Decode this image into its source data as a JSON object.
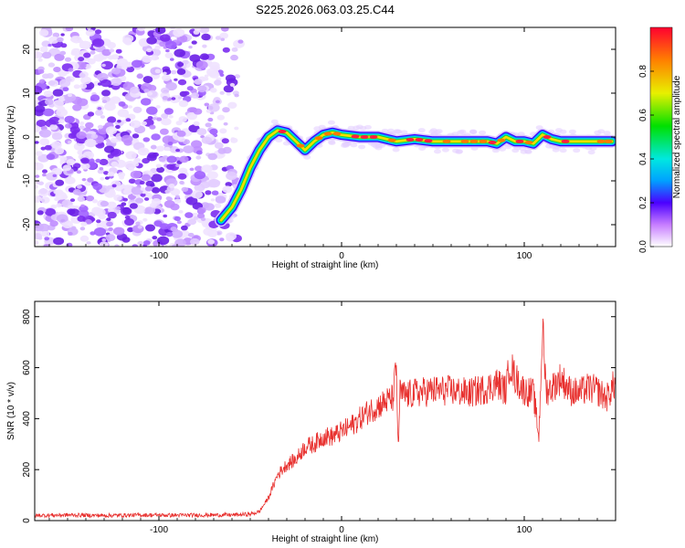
{
  "title": "S225.2026.063.03.25.C44",
  "colors": {
    "snr_line": "#e8312f",
    "scatter": "#7b2cf0",
    "axis": "#000000"
  },
  "chart_data": [
    {
      "type": "heatmap",
      "name": "spectrogram",
      "title": "S225.2026.063.03.25.C44",
      "xlabel": "Height of straight line (km)",
      "ylabel": "Frequency (Hz)",
      "xlim": [
        -168,
        150
      ],
      "ylim": [
        -25,
        25
      ],
      "x_ticks": [
        -100,
        0,
        100
      ],
      "y_ticks": [
        -20,
        -10,
        0,
        10,
        20
      ],
      "colorbar": {
        "label": "Normalized spectral amplitude",
        "range": [
          0,
          1
        ],
        "ticks": [
          0.0,
          0.2,
          0.4,
          0.6,
          0.8
        ]
      },
      "noise_region_x": [
        -168,
        -55
      ],
      "track": {
        "x": [
          -66,
          -60,
          -55,
          -50,
          -45,
          -40,
          -35,
          -30,
          -25,
          -20,
          -15,
          -10,
          -5,
          0,
          10,
          20,
          30,
          40,
          50,
          60,
          70,
          80,
          85,
          90,
          95,
          100,
          105,
          110,
          115,
          120,
          130,
          140,
          148
        ],
        "y": [
          -19,
          -16,
          -12,
          -7,
          -3,
          0,
          1.5,
          1,
          -1,
          -3,
          -1,
          0.5,
          1,
          0.5,
          0,
          0,
          -1,
          -0.5,
          -1,
          -1,
          -1,
          -1,
          -1.5,
          0,
          -1,
          -1,
          -1.5,
          0.5,
          -0.5,
          -1,
          -1,
          -1,
          -1
        ],
        "peak_amplitude": 0.95
      }
    },
    {
      "type": "line",
      "name": "snr",
      "title": "",
      "xlabel": "Height of straight line (km)",
      "ylabel": "SNR (10 * v/v)",
      "xlim": [
        -168,
        150
      ],
      "ylim": [
        0,
        860
      ],
      "x_ticks": [
        -100,
        0,
        100
      ],
      "y_ticks": [
        0,
        200,
        400,
        600,
        800
      ],
      "series": [
        {
          "name": "SNR",
          "x": [
            -168,
            -150,
            -130,
            -110,
            -90,
            -70,
            -60,
            -50,
            -45,
            -40,
            -35,
            -30,
            -25,
            -20,
            -15,
            -10,
            -5,
            0,
            5,
            10,
            15,
            20,
            25,
            28,
            30,
            31,
            32,
            35,
            40,
            50,
            60,
            70,
            80,
            85,
            90,
            92,
            95,
            100,
            105,
            108,
            110,
            112,
            115,
            120,
            125,
            130,
            135,
            140,
            145,
            148,
            150
          ],
          "values": [
            20,
            22,
            20,
            22,
            21,
            22,
            22,
            25,
            35,
            90,
            180,
            220,
            240,
            290,
            300,
            330,
            330,
            350,
            370,
            400,
            430,
            450,
            470,
            480,
            600,
            280,
            500,
            490,
            500,
            510,
            510,
            500,
            520,
            540,
            510,
            620,
            560,
            510,
            500,
            330,
            760,
            510,
            520,
            560,
            510,
            500,
            520,
            510,
            480,
            520,
            540
          ]
        }
      ]
    }
  ]
}
